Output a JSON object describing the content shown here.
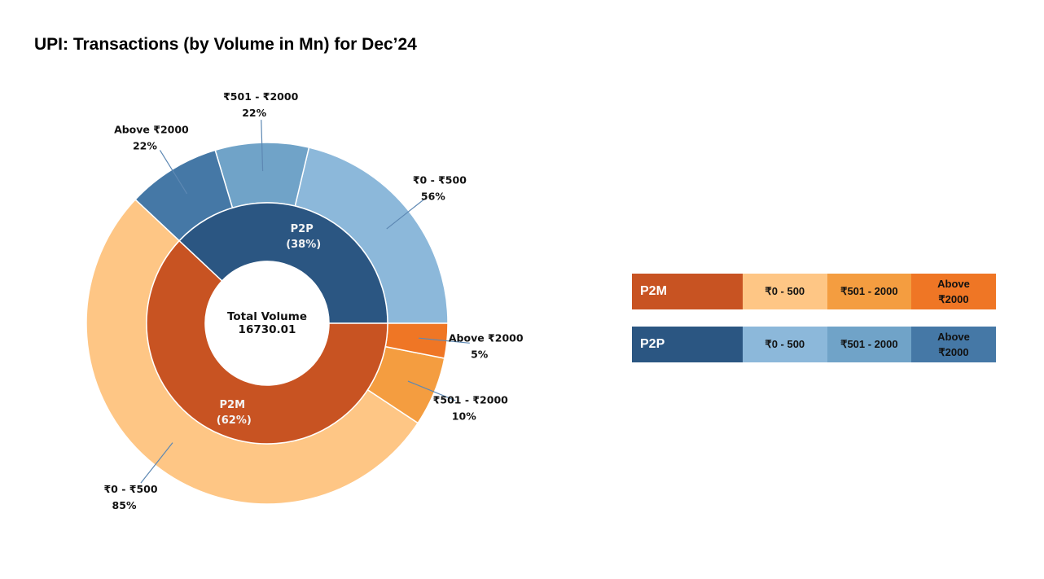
{
  "title": "UPI: Transactions (by Volume in Mn) for Dec’24",
  "chart_data": {
    "type": "pie",
    "center_label": [
      "Total Volume",
      "16730.01"
    ],
    "inner": [
      {
        "name": "P2P",
        "pct_label": "(38%)",
        "value": 38,
        "color": "#2b5682"
      },
      {
        "name": "P2M",
        "pct_label": "(62%)",
        "value": 62,
        "color": "#c85322"
      }
    ],
    "outer": [
      {
        "group": "P2P",
        "label": "₹0 - ₹500",
        "pct": "56%",
        "value": 21.28,
        "color": "#8cb8da"
      },
      {
        "group": "P2P",
        "label": "₹501 - ₹2000",
        "pct": "22%",
        "value": 8.36,
        "color": "#70a3c8"
      },
      {
        "group": "P2P",
        "label": "Above ₹2000",
        "pct": "22%",
        "value": 8.36,
        "color": "#4578a6"
      },
      {
        "group": "P2M",
        "label": "₹0 - ₹500",
        "pct": "85%",
        "value": 52.7,
        "color": "#fec685"
      },
      {
        "group": "P2M",
        "label": "₹501 - ₹2000",
        "pct": "10%",
        "value": 6.2,
        "color": "#f49d40"
      },
      {
        "group": "P2M",
        "label": "Above ₹2000",
        "pct": "5%",
        "value": 3.1,
        "color": "#ef7625"
      }
    ]
  },
  "legend": [
    {
      "head": "P2M",
      "head_color": "#c85322",
      "items": [
        {
          "label": "₹0 - 500",
          "color": "#fec685"
        },
        {
          "label": "₹501 - 2000",
          "color": "#f49d40"
        },
        {
          "label": "Above\n₹2000",
          "color": "#ef7625"
        }
      ]
    },
    {
      "head": "P2P",
      "head_color": "#2b5682",
      "items": [
        {
          "label": "₹0 - 500",
          "color": "#8cb8da"
        },
        {
          "label": "₹501 - 2000",
          "color": "#70a3c8"
        },
        {
          "label": "Above\n₹2000",
          "color": "#4578a6"
        }
      ]
    }
  ]
}
